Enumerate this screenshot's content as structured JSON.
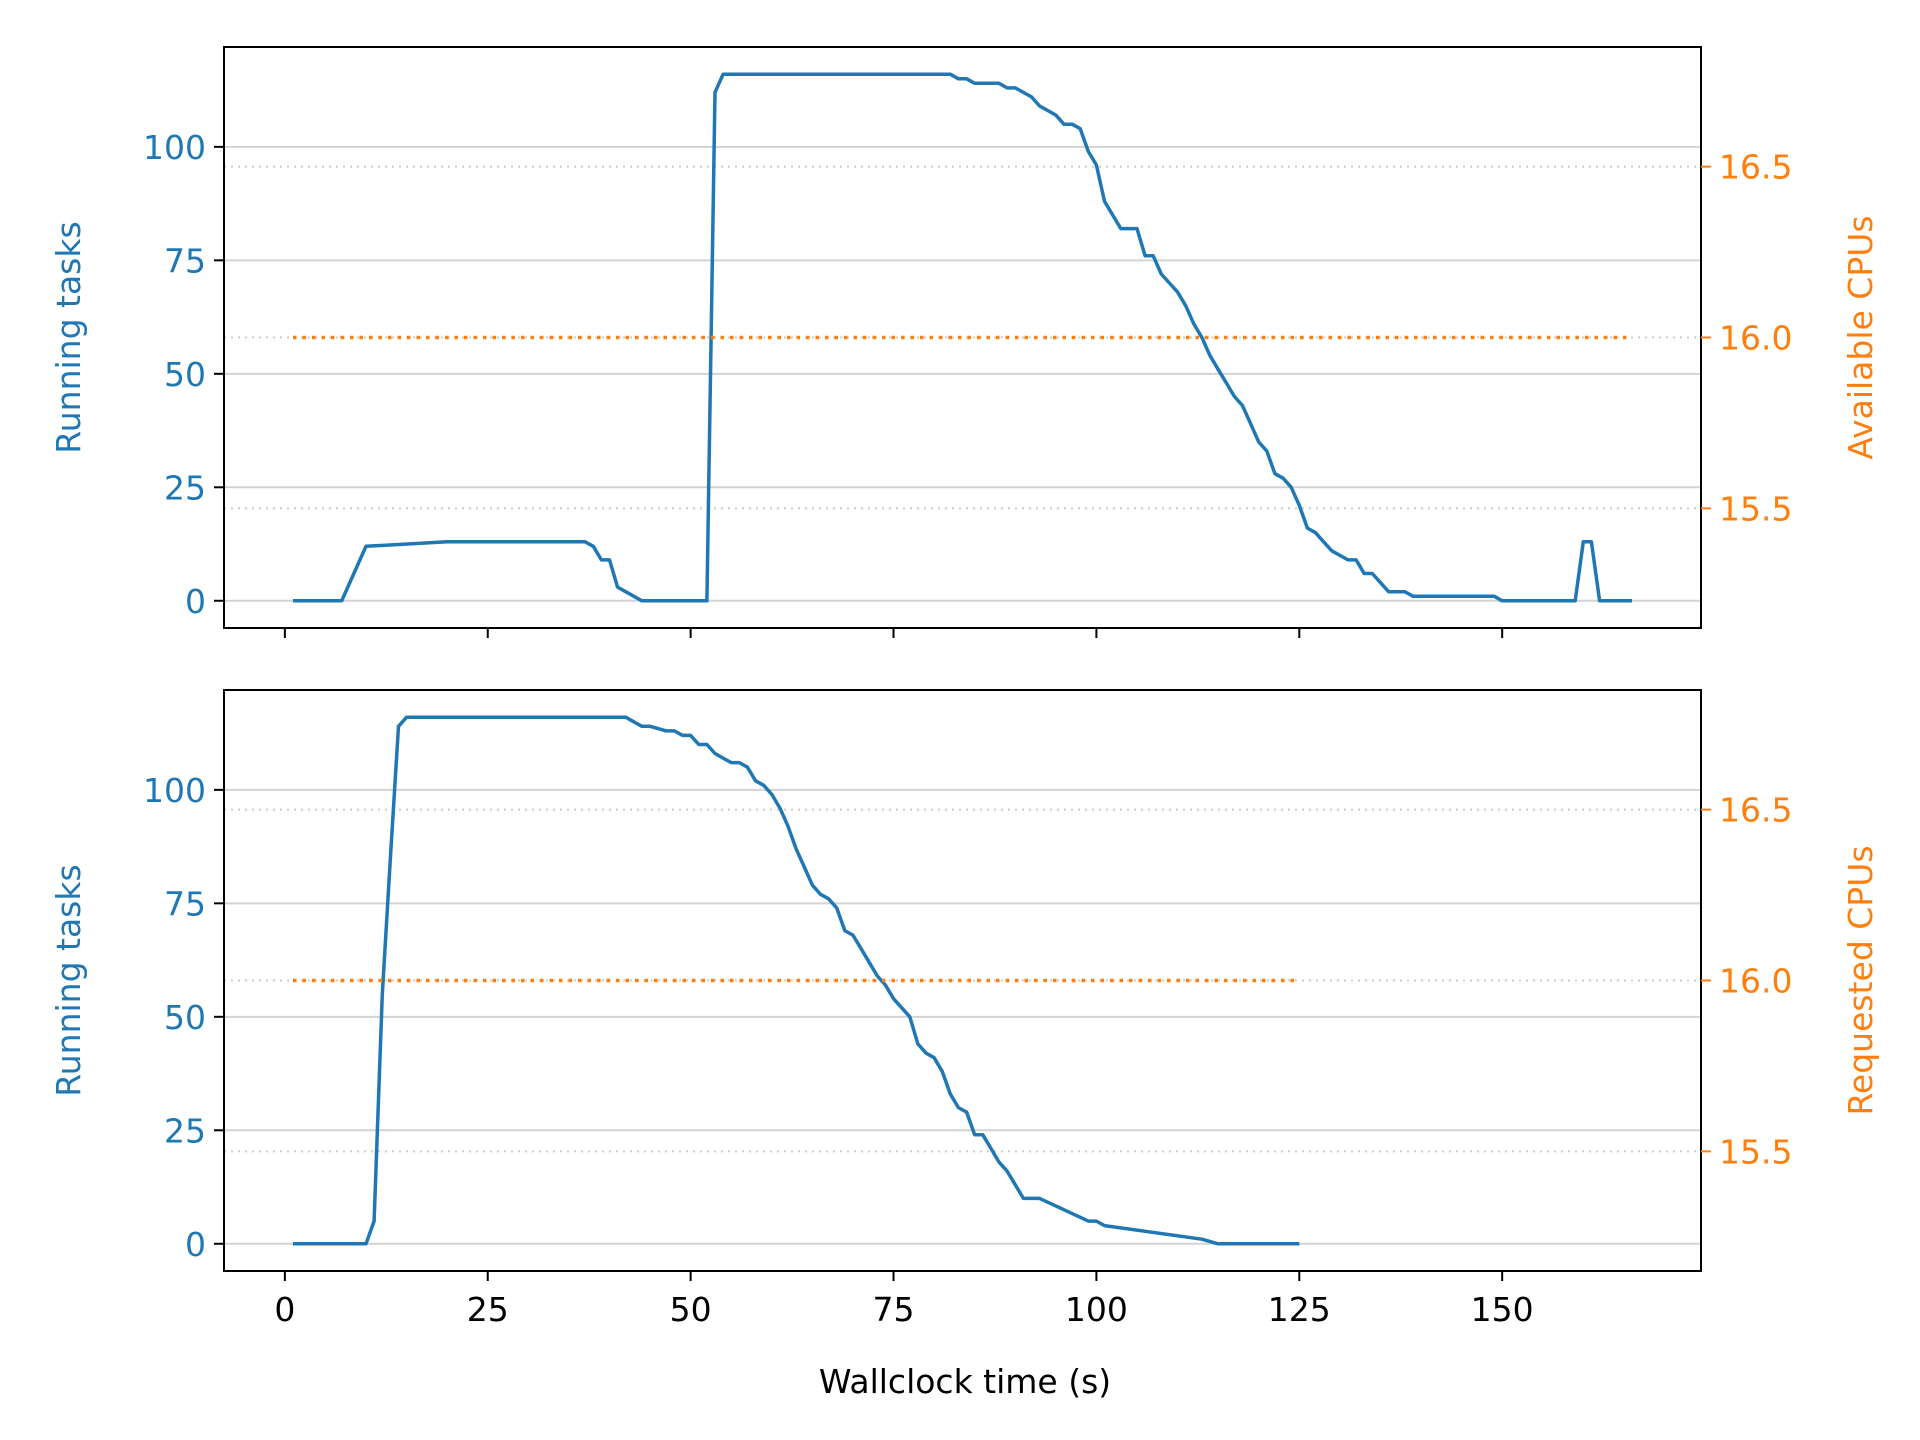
{
  "colors": {
    "tasks": "#1f77b4",
    "cpus": "#ff7f0e",
    "grid": "#d3d3d3",
    "axis": "#000000"
  },
  "xaxis": {
    "label": "Wallclock time (s)",
    "xlim": [
      -7.5,
      174.5
    ],
    "ticks": [
      0,
      25,
      50,
      75,
      100,
      125,
      150
    ]
  },
  "chart_data": [
    {
      "type": "line",
      "ylabel_left": "Running tasks",
      "ylabel_right": "Available CPUs",
      "ylim_left": [
        -6,
        122
      ],
      "yticks_left": [
        0,
        25,
        50,
        75,
        100
      ],
      "ylim_right": [
        15.15,
        16.85
      ],
      "yticks_right": [
        "15.5",
        "16.0",
        "16.5"
      ],
      "grid": "horizontal",
      "series": [
        {
          "axis": "left",
          "style": "solid",
          "x": [
            1,
            7,
            9,
            10,
            20,
            37,
            38,
            39,
            40,
            41,
            42,
            44,
            52,
            53,
            54,
            60,
            82,
            83,
            84,
            85,
            88,
            89,
            90,
            91,
            92,
            93,
            94,
            95,
            96,
            97,
            98,
            99,
            100,
            101,
            102,
            103,
            105,
            106,
            107,
            108,
            109,
            110,
            111,
            112,
            113,
            114,
            115,
            116,
            117,
            118,
            119,
            120,
            121,
            122,
            123,
            124,
            125,
            126,
            127,
            128,
            129,
            130,
            131,
            132,
            133,
            134,
            135,
            136,
            137,
            138,
            139,
            140,
            145,
            148,
            149,
            150,
            157,
            158,
            159,
            160,
            161,
            162,
            166
          ],
          "y": [
            0,
            0,
            8,
            12,
            13,
            13,
            12,
            9,
            9,
            3,
            2,
            0,
            0,
            112,
            116,
            116,
            116,
            115,
            115,
            114,
            114,
            113,
            113,
            112,
            111,
            109,
            108,
            107,
            105,
            105,
            104,
            99,
            96,
            88,
            85,
            82,
            82,
            76,
            76,
            72,
            70,
            68,
            65,
            61,
            58,
            54,
            51,
            48,
            45,
            43,
            39,
            35,
            33,
            28,
            27,
            25,
            21,
            16,
            15,
            13,
            11,
            10,
            9,
            9,
            6,
            6,
            4,
            2,
            2,
            2,
            1,
            1,
            1,
            1,
            1,
            0,
            0,
            0,
            0,
            13,
            13,
            0,
            0
          ]
        },
        {
          "axis": "right",
          "style": "dotted",
          "x": [
            1,
            166
          ],
          "y": [
            16.0,
            16.0
          ]
        }
      ]
    },
    {
      "type": "line",
      "ylabel_left": "Running tasks",
      "ylabel_right": "Requested CPUs",
      "ylim_left": [
        -6,
        122
      ],
      "yticks_left": [
        0,
        25,
        50,
        75,
        100
      ],
      "ylim_right": [
        15.15,
        16.85
      ],
      "yticks_right": [
        "15.5",
        "16.0",
        "16.5"
      ],
      "grid": "horizontal",
      "series": [
        {
          "axis": "left",
          "style": "solid",
          "x": [
            1,
            10,
            11,
            12,
            13,
            14,
            15,
            42,
            43,
            44,
            45,
            47,
            48,
            49,
            50,
            51,
            52,
            53,
            54,
            55,
            56,
            57,
            58,
            59,
            60,
            61,
            62,
            63,
            64,
            65,
            66,
            67,
            68,
            69,
            70,
            71,
            72,
            73,
            74,
            75,
            76,
            77,
            78,
            79,
            80,
            81,
            82,
            83,
            84,
            85,
            86,
            87,
            88,
            89,
            90,
            91,
            93,
            99,
            100,
            101,
            113,
            115,
            125
          ],
          "y": [
            0,
            0,
            5,
            55,
            85,
            114,
            116,
            116,
            115,
            114,
            114,
            113,
            113,
            112,
            112,
            110,
            110,
            108,
            107,
            106,
            106,
            105,
            102,
            101,
            99,
            96,
            92,
            87,
            83,
            79,
            77,
            76,
            74,
            69,
            68,
            65,
            62,
            59,
            57,
            54,
            52,
            50,
            44,
            42,
            41,
            38,
            33,
            30,
            29,
            24,
            24,
            21,
            18,
            16,
            13,
            10,
            10,
            5,
            5,
            4,
            1,
            0,
            0
          ]
        },
        {
          "axis": "right",
          "style": "dotted",
          "x": [
            1,
            125
          ],
          "y": [
            16.0,
            16.0
          ]
        }
      ]
    }
  ]
}
